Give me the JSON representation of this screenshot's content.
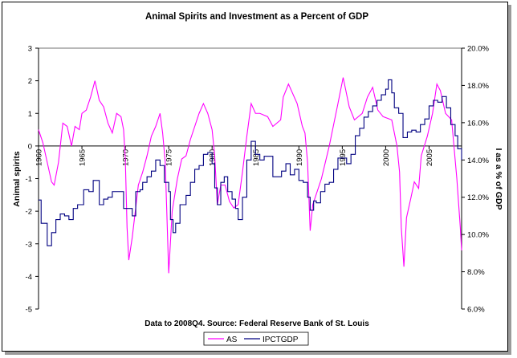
{
  "chart_data": {
    "type": "line",
    "title": "Animal Spirits and Investment as a Percent of GDP",
    "ylabel": "Animal spirits",
    "y2label": "I as a % of GDP",
    "footnote": "Data to 2008Q4.  Source: Federal Reserve Bank of St. Louis",
    "ylim": [
      -5,
      3
    ],
    "y2lim": [
      6,
      20
    ],
    "xlim": [
      1960,
      2008.75
    ],
    "yticks": [
      "3",
      "2",
      "1",
      "0",
      "-1",
      "-2",
      "-3",
      "-4",
      "-5"
    ],
    "y2ticks": [
      "20.0%",
      "18.0%",
      "16.0%",
      "14.0%",
      "12.0%",
      "10.0%",
      "8.0%",
      "6.0%"
    ],
    "xticks": [
      "1960",
      "1965",
      "1970",
      "1975",
      "1980",
      "1985",
      "1990",
      "1995",
      "2000",
      "2005"
    ],
    "legend_position": "bottom",
    "series": [
      {
        "name": "AS",
        "axis": "left",
        "color": "#ff00ff",
        "x": [
          1960,
          1960.5,
          1961,
          1961.5,
          1961.8,
          1962.3,
          1962.8,
          1963.3,
          1963.8,
          1964.2,
          1964.7,
          1965,
          1965.5,
          1966,
          1966.5,
          1967,
          1967.5,
          1968,
          1968.5,
          1969,
          1969.5,
          1969.8,
          1970,
          1970.2,
          1970.4,
          1970.8,
          1971.5,
          1972,
          1972.5,
          1973,
          1973.5,
          1974,
          1974.3,
          1974.6,
          1975,
          1975.4,
          1976,
          1976.5,
          1977,
          1977.5,
          1978,
          1978.5,
          1979,
          1979.5,
          1980,
          1980.3,
          1980.6,
          1981,
          1981.5,
          1982,
          1982.5,
          1983,
          1983.5,
          1984,
          1984.5,
          1985,
          1985.5,
          1986.4,
          1987,
          1987.9,
          1988.2,
          1988.8,
          1989.8,
          1990.4,
          1990.7,
          1991,
          1991.3,
          1991.6,
          1992.6,
          1993.5,
          1994.5,
          1995.1,
          1995.8,
          1996.4,
          1997.3,
          1997.9,
          1998.5,
          1999.1,
          1999.7,
          2000.7,
          2001.3,
          2001.6,
          2001.8,
          2002.1,
          2002.4,
          2002.9,
          2003.3,
          2003.8,
          2004.1,
          2004.8,
          2005.4,
          2005.9,
          2006.3,
          2006.9,
          2007.6,
          2008.2,
          2008.6,
          2008.75
        ],
        "values": [
          0.5,
          0.1,
          -0.5,
          -1.1,
          -1.2,
          -0.5,
          0.7,
          0.6,
          0.0,
          0.6,
          0.5,
          1.0,
          1.1,
          1.5,
          2.0,
          1.4,
          1.2,
          0.7,
          0.4,
          1.0,
          0.9,
          0.5,
          -0.4,
          -2.5,
          -3.5,
          -2.8,
          -1.2,
          -0.8,
          -0.3,
          0.3,
          0.6,
          1.0,
          0.4,
          -0.5,
          -3.9,
          -2.0,
          -1.0,
          -0.4,
          -0.3,
          0.2,
          0.6,
          1.0,
          1.3,
          1.0,
          0.5,
          -0.3,
          -1.8,
          -1.2,
          -1.2,
          -1.7,
          -1.9,
          -1.8,
          -0.8,
          0.3,
          1.3,
          1.0,
          1.0,
          0.9,
          0.6,
          0.8,
          1.5,
          1.9,
          1.3,
          0.6,
          0.4,
          -0.5,
          -2.6,
          -1.8,
          -1.0,
          0.0,
          1.3,
          2.1,
          1.2,
          0.8,
          1.0,
          1.5,
          1.8,
          1.1,
          0.9,
          0.8,
          0.0,
          -0.8,
          -2.5,
          -3.7,
          -2.2,
          -1.6,
          -1.1,
          -1.3,
          -0.3,
          0.3,
          1.0,
          1.9,
          1.7,
          1.0,
          0.8,
          -1.0,
          -2.5,
          -3.2
        ]
      },
      {
        "name": "IPCTGDP",
        "axis": "right",
        "color": "#000080",
        "x": [
          1960,
          1960.3,
          1961,
          1961.5,
          1962,
          1962.5,
          1963,
          1963.5,
          1964,
          1964.5,
          1965,
          1965.2,
          1965.8,
          1966.3,
          1967,
          1967.5,
          1968,
          1968.5,
          1969,
          1969.8,
          1970.3,
          1970.8,
          1971.2,
          1971.7,
          1972,
          1972.5,
          1973,
          1973.5,
          1974,
          1974.5,
          1975,
          1975.2,
          1975.5,
          1975.8,
          1976.3,
          1977,
          1977.5,
          1978,
          1978.5,
          1979,
          1979.5,
          1980,
          1980.3,
          1980.6,
          1981,
          1981.4,
          1981.8,
          1982.3,
          1982.7,
          1983,
          1983.5,
          1984,
          1984.5,
          1985,
          1985.5,
          1986,
          1987,
          1988,
          1988.5,
          1989,
          1989.5,
          1990,
          1990.5,
          1991,
          1991.3,
          1991.7,
          1992,
          1992.5,
          1993,
          1993.5,
          1994,
          1994.5,
          1995,
          1995.5,
          1996,
          1996.5,
          1997,
          1997.5,
          1998,
          1998.5,
          1999,
          1999.5,
          2000,
          2000.3,
          2000.7,
          2001,
          2001.5,
          2002,
          2002.5,
          2003,
          2003.5,
          2004,
          2004.5,
          2005,
          2005.5,
          2006,
          2006.5,
          2007,
          2007.5,
          2008,
          2008.3,
          2008.75
        ],
        "values": [
          11.85,
          10.6,
          9.4,
          10.1,
          10.8,
          11.1,
          11.0,
          10.8,
          11.4,
          11.6,
          11.6,
          12.4,
          12.3,
          12.9,
          11.6,
          11.9,
          12.0,
          12.3,
          12.3,
          11.4,
          11.4,
          11.0,
          12.3,
          12.4,
          12.8,
          13.1,
          13.4,
          14.0,
          13.7,
          12.8,
          12.3,
          10.8,
          10.1,
          10.6,
          11.6,
          12.1,
          12.8,
          13.5,
          13.7,
          14.3,
          14.4,
          13.8,
          12.5,
          11.6,
          12.8,
          13.1,
          12.3,
          11.9,
          11.4,
          10.8,
          12.0,
          14.0,
          15.0,
          14.3,
          14.0,
          14.2,
          13.1,
          13.4,
          13.8,
          13.2,
          13.5,
          12.9,
          12.8,
          12.0,
          11.3,
          11.8,
          11.7,
          12.3,
          12.7,
          12.8,
          13.5,
          14.1,
          14.1,
          13.8,
          14.3,
          15.3,
          15.7,
          16.3,
          16.6,
          16.9,
          17.2,
          17.5,
          17.8,
          18.3,
          17.6,
          16.8,
          16.5,
          15.2,
          15.5,
          15.6,
          15.5,
          15.9,
          16.2,
          16.9,
          17.2,
          17.1,
          17.4,
          16.8,
          15.9,
          15.3,
          14.6,
          14.0
        ]
      }
    ]
  }
}
